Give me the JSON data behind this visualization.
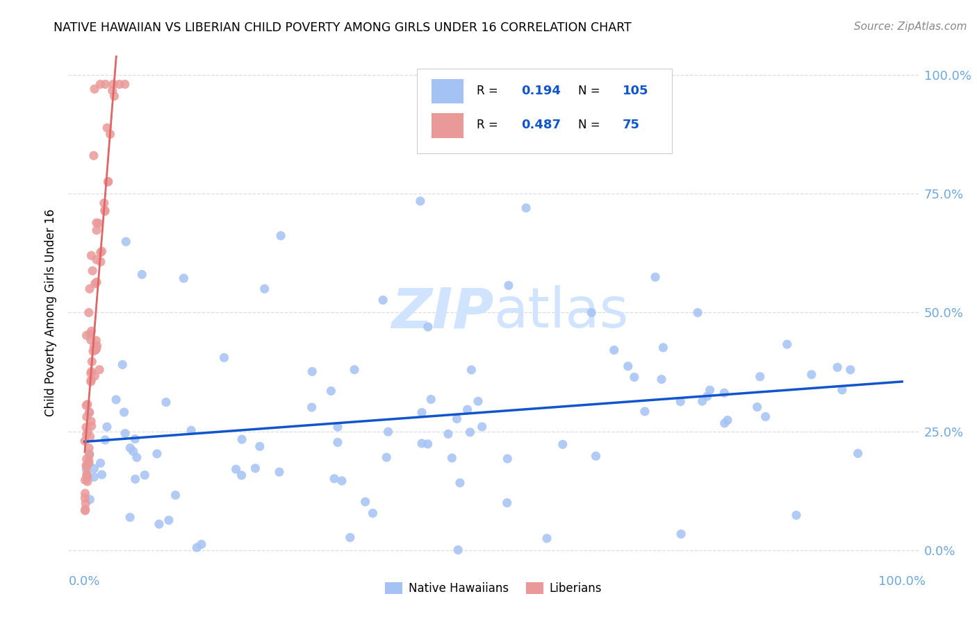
{
  "title": "NATIVE HAWAIIAN VS LIBERIAN CHILD POVERTY AMONG GIRLS UNDER 16 CORRELATION CHART",
  "source": "Source: ZipAtlas.com",
  "ylabel": "Child Poverty Among Girls Under 16",
  "r_nh": 0.194,
  "n_nh": 105,
  "r_lib": 0.487,
  "n_lib": 75,
  "blue_scatter": "#a4c2f4",
  "pink_scatter": "#ea9999",
  "blue_line_color": "#1155cc",
  "pink_line_color": "#e06666",
  "pink_dash_color": "#e06666",
  "axis_tick_color": "#6fa8dc",
  "ylabel_color": "#000000",
  "title_color": "#000000",
  "source_color": "#888888",
  "watermark_color": "#d0e4ff",
  "grid_color": "#dddddd",
  "legend_box_color": "#cccccc",
  "background_color": "#ffffff",
  "legend_text_color": "#1155cc",
  "seed": 7
}
